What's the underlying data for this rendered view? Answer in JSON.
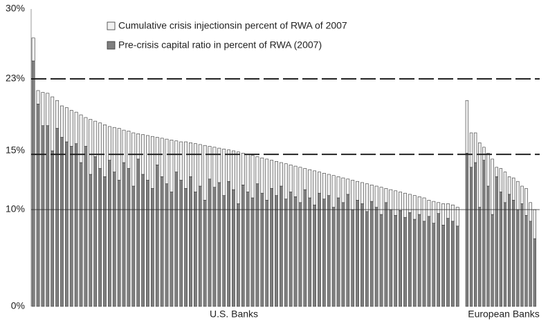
{
  "chart_data": {
    "type": "stacked-bar",
    "series": [
      {
        "name": "Cumulative crisis injectionsin percent of RWA of 2007",
        "color": "#f2f2f2"
      },
      {
        "name": "Pre-crisis capital ratio in percent of RWA (2007)",
        "color": "#7f7f7f"
      }
    ],
    "groups": [
      {
        "label": "U.S. Banks",
        "capital": [
          24.8,
          20.2,
          17.8,
          17.8,
          15.0,
          17.5,
          16.5,
          16.0,
          15.5,
          15.8,
          14.0,
          15.5,
          13.0,
          14.5,
          13.5,
          12.8,
          14.2,
          13.2,
          12.5,
          14.0,
          13.5,
          12.0,
          14.3,
          13.0,
          12.5,
          11.8,
          13.8,
          12.8,
          12.2,
          11.5,
          13.2,
          12.5,
          11.8,
          12.8,
          11.5,
          12.0,
          10.8,
          12.6,
          11.9,
          12.3,
          11.2,
          12.4,
          11.7,
          10.5,
          12.1,
          11.5,
          11.0,
          12.2,
          11.4,
          10.8,
          11.8,
          11.2,
          12.0,
          10.9,
          11.5,
          11.1,
          10.6,
          11.7,
          11.0,
          10.4,
          11.4,
          10.9,
          11.2,
          10.2,
          11.0,
          10.6,
          11.3,
          10.0,
          10.8,
          10.5,
          9.8,
          10.7,
          10.2,
          9.5,
          10.6,
          10.0,
          9.4,
          9.9,
          9.2,
          9.7,
          9.0,
          9.5,
          8.8,
          9.3,
          8.6,
          9.6,
          8.4,
          9.1,
          8.8,
          8.3
        ],
        "injections": [
          2.3,
          1.5,
          3.7,
          3.6,
          6.0,
          3.1,
          3.5,
          3.8,
          4.0,
          3.5,
          5.0,
          3.2,
          5.5,
          3.8,
          4.6,
          5.1,
          3.5,
          4.4,
          5.0,
          3.3,
          3.7,
          5.0,
          2.6,
          3.8,
          4.2,
          4.8,
          2.7,
          3.6,
          4.1,
          4.7,
          2.9,
          3.5,
          4.2,
          3.1,
          4.3,
          3.7,
          4.8,
          2.9,
          3.5,
          3.0,
          4.0,
          2.7,
          3.3,
          4.4,
          2.7,
          3.2,
          3.6,
          2.3,
          3.0,
          3.5,
          2.4,
          2.9,
          2.0,
          3.0,
          2.3,
          2.6,
          3.0,
          1.8,
          2.4,
          2.9,
          1.8,
          2.2,
          1.8,
          2.7,
          1.8,
          2.1,
          1.3,
          2.5,
          1.6,
          1.8,
          2.4,
          1.4,
          1.8,
          2.4,
          1.2,
          1.7,
          2.2,
          1.6,
          2.2,
          1.6,
          2.2,
          1.6,
          2.2,
          1.5,
          2.1,
          1.0,
          2.1,
          1.4,
          1.6,
          1.9
        ]
      },
      {
        "label": "European Banks",
        "capital": [
          14.8,
          13.6,
          14.0,
          10.2,
          14.2,
          12.0,
          9.5,
          12.8,
          11.5,
          10.6,
          11.3,
          10.8,
          10.0,
          10.5,
          9.4,
          8.8,
          7.0
        ],
        "injections": [
          5.8,
          3.4,
          3.0,
          5.7,
          1.2,
          2.8,
          4.8,
          0.8,
          2.0,
          2.6,
          1.5,
          1.9,
          2.4,
          1.5,
          2.4,
          1.8,
          3.0
        ]
      }
    ],
    "ylim": [
      0,
      30
    ],
    "yticks": [
      {
        "value": 0,
        "label": "0%"
      },
      {
        "value": 10,
        "label": "10%"
      },
      {
        "value": 15,
        "label": "15%"
      },
      {
        "value": 23,
        "label": "23%"
      },
      {
        "value": 30,
        "label": "30%"
      }
    ],
    "reference_lines": [
      {
        "value": 23,
        "style": "dashed"
      },
      {
        "value": 14.7,
        "style": "dashed"
      },
      {
        "value": 10,
        "style": "solid"
      }
    ]
  }
}
